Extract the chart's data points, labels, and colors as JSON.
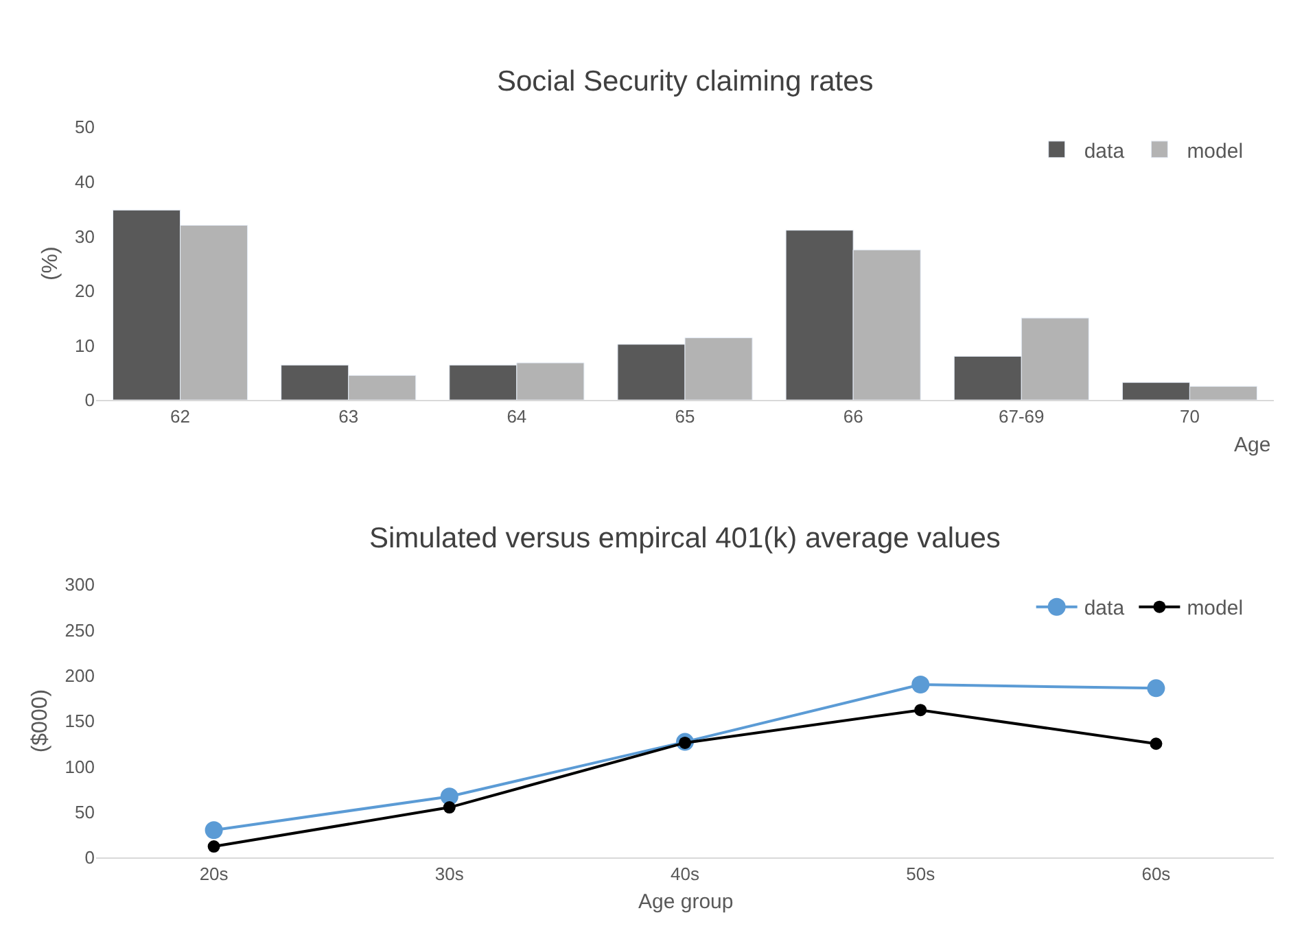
{
  "chart_data": [
    {
      "type": "bar",
      "title": "Social Security claiming rates",
      "xlabel": "Age",
      "ylabel": "(%)",
      "categories": [
        "62",
        "63",
        "64",
        "65",
        "66",
        "67-69",
        "70"
      ],
      "series": [
        {
          "name": "data",
          "color": "#595959",
          "values": [
            34.8,
            6.4,
            6.4,
            10.2,
            31.1,
            8.0,
            3.2
          ]
        },
        {
          "name": "model",
          "color": "#b3b3b3",
          "values": [
            32.0,
            4.5,
            6.8,
            11.4,
            27.5,
            15.0,
            2.5
          ]
        }
      ],
      "ylim": [
        0,
        50
      ],
      "yticks": [
        0,
        10,
        20,
        30,
        40,
        50
      ],
      "grid": false,
      "legend": "top right"
    },
    {
      "type": "line",
      "title": "Simulated versus empircal 401(k) average values",
      "xlabel": "Age group",
      "ylabel": "($000)",
      "categories": [
        "20s",
        "30s",
        "40s",
        "50s",
        "60s"
      ],
      "series": [
        {
          "name": "data",
          "color": "#5b9bd5",
          "values": [
            30,
            67,
            127,
            190,
            186
          ]
        },
        {
          "name": "model",
          "color": "#000000",
          "values": [
            12,
            55,
            126,
            162,
            125
          ]
        }
      ],
      "ylim": [
        0,
        300
      ],
      "yticks": [
        0,
        50,
        100,
        150,
        200,
        250,
        300
      ],
      "grid": false,
      "legend": "top right",
      "marker": "circle",
      "line_style": "solid"
    }
  ]
}
